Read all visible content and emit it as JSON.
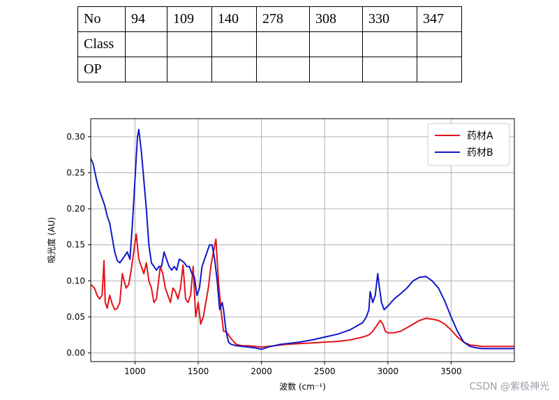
{
  "table": {
    "rows": [
      {
        "header": "No",
        "cells": [
          "94",
          "109",
          "140",
          "278",
          "308",
          "330",
          "347"
        ]
      },
      {
        "header": "Class",
        "cells": [
          "",
          "",
          "",
          "",
          "",
          "",
          ""
        ]
      },
      {
        "header": "OP",
        "cells": [
          "",
          "",
          "",
          "",
          "",
          "",
          ""
        ]
      }
    ]
  },
  "chart_data": {
    "type": "line",
    "title": "",
    "xlabel": "波数 (cm⁻¹)",
    "ylabel": "吸光度 (AU)",
    "xlim": [
      650,
      4000
    ],
    "ylim": [
      -0.012,
      0.325
    ],
    "xticks": [
      1000,
      1500,
      2000,
      2500,
      3000,
      3500
    ],
    "yticks": [
      0.0,
      0.05,
      0.1,
      0.15,
      0.2,
      0.25,
      0.3
    ],
    "ytick_labels": [
      "0.00",
      "0.05",
      "0.10",
      "0.15",
      "0.20",
      "0.25",
      "0.30"
    ],
    "grid": true,
    "legend_position": "top-right",
    "series": [
      {
        "name": "药材A",
        "color": "#e3121b",
        "x": [
          650,
          680,
          700,
          720,
          740,
          755,
          765,
          780,
          800,
          820,
          840,
          860,
          880,
          900,
          930,
          950,
          970,
          990,
          1010,
          1030,
          1050,
          1070,
          1090,
          1110,
          1130,
          1150,
          1170,
          1200,
          1220,
          1240,
          1260,
          1280,
          1300,
          1320,
          1340,
          1360,
          1380,
          1400,
          1420,
          1440,
          1460,
          1480,
          1500,
          1520,
          1540,
          1560,
          1580,
          1600,
          1620,
          1640,
          1660,
          1680,
          1700,
          1720,
          1740,
          1760,
          1800,
          1850,
          1900,
          1950,
          2000,
          2050,
          2100,
          2150,
          2200,
          2300,
          2400,
          2500,
          2600,
          2700,
          2800,
          2850,
          2880,
          2900,
          2920,
          2940,
          2960,
          2980,
          3000,
          3050,
          3100,
          3150,
          3200,
          3250,
          3300,
          3350,
          3400,
          3450,
          3500,
          3550,
          3600,
          3650,
          3700,
          3750,
          3800,
          3900,
          4000
        ],
        "y": [
          0.095,
          0.09,
          0.08,
          0.075,
          0.08,
          0.128,
          0.07,
          0.062,
          0.08,
          0.068,
          0.06,
          0.062,
          0.07,
          0.11,
          0.09,
          0.095,
          0.115,
          0.14,
          0.165,
          0.13,
          0.12,
          0.11,
          0.125,
          0.1,
          0.09,
          0.07,
          0.075,
          0.12,
          0.11,
          0.09,
          0.08,
          0.07,
          0.09,
          0.085,
          0.075,
          0.09,
          0.122,
          0.075,
          0.07,
          0.08,
          0.12,
          0.05,
          0.07,
          0.04,
          0.05,
          0.07,
          0.09,
          0.12,
          0.14,
          0.158,
          0.1,
          0.06,
          0.03,
          0.03,
          0.025,
          0.02,
          0.012,
          0.01,
          0.01,
          0.009,
          0.008,
          0.009,
          0.01,
          0.011,
          0.012,
          0.013,
          0.014,
          0.015,
          0.016,
          0.018,
          0.022,
          0.025,
          0.03,
          0.035,
          0.04,
          0.045,
          0.04,
          0.03,
          0.028,
          0.028,
          0.03,
          0.035,
          0.04,
          0.045,
          0.048,
          0.047,
          0.045,
          0.04,
          0.032,
          0.022,
          0.015,
          0.011,
          0.01,
          0.009,
          0.009,
          0.009,
          0.009
        ]
      },
      {
        "name": "药材B",
        "color": "#0f17c9",
        "x": [
          650,
          670,
          690,
          710,
          730,
          760,
          780,
          800,
          820,
          840,
          860,
          880,
          900,
          920,
          940,
          960,
          980,
          1000,
          1020,
          1030,
          1050,
          1070,
          1090,
          1110,
          1130,
          1150,
          1170,
          1190,
          1210,
          1230,
          1250,
          1270,
          1290,
          1310,
          1330,
          1350,
          1370,
          1390,
          1410,
          1430,
          1450,
          1470,
          1490,
          1510,
          1530,
          1550,
          1570,
          1590,
          1610,
          1630,
          1650,
          1670,
          1690,
          1700,
          1720,
          1740,
          1760,
          1780,
          1800,
          1850,
          1900,
          1950,
          2000,
          2050,
          2100,
          2150,
          2200,
          2300,
          2400,
          2500,
          2600,
          2700,
          2800,
          2830,
          2850,
          2860,
          2880,
          2900,
          2920,
          2930,
          2950,
          2970,
          3000,
          3050,
          3100,
          3150,
          3200,
          3250,
          3300,
          3350,
          3400,
          3450,
          3500,
          3550,
          3600,
          3650,
          3700,
          3750,
          3800,
          3900,
          4000
        ],
        "y": [
          0.27,
          0.262,
          0.245,
          0.23,
          0.22,
          0.205,
          0.19,
          0.18,
          0.16,
          0.14,
          0.128,
          0.125,
          0.13,
          0.135,
          0.14,
          0.13,
          0.18,
          0.24,
          0.3,
          0.31,
          0.28,
          0.24,
          0.2,
          0.15,
          0.125,
          0.12,
          0.115,
          0.12,
          0.12,
          0.14,
          0.13,
          0.12,
          0.115,
          0.12,
          0.115,
          0.13,
          0.128,
          0.125,
          0.12,
          0.12,
          0.11,
          0.105,
          0.08,
          0.09,
          0.12,
          0.13,
          0.14,
          0.15,
          0.15,
          0.13,
          0.1,
          0.06,
          0.07,
          0.06,
          0.03,
          0.015,
          0.012,
          0.011,
          0.01,
          0.009,
          0.008,
          0.007,
          0.005,
          0.008,
          0.01,
          0.012,
          0.013,
          0.015,
          0.018,
          0.022,
          0.026,
          0.032,
          0.042,
          0.05,
          0.06,
          0.085,
          0.07,
          0.08,
          0.11,
          0.095,
          0.07,
          0.06,
          0.065,
          0.075,
          0.082,
          0.09,
          0.1,
          0.105,
          0.106,
          0.1,
          0.09,
          0.072,
          0.05,
          0.03,
          0.015,
          0.009,
          0.007,
          0.006,
          0.006,
          0.006,
          0.006
        ]
      }
    ]
  },
  "watermark": "CSDN @紫极神光"
}
